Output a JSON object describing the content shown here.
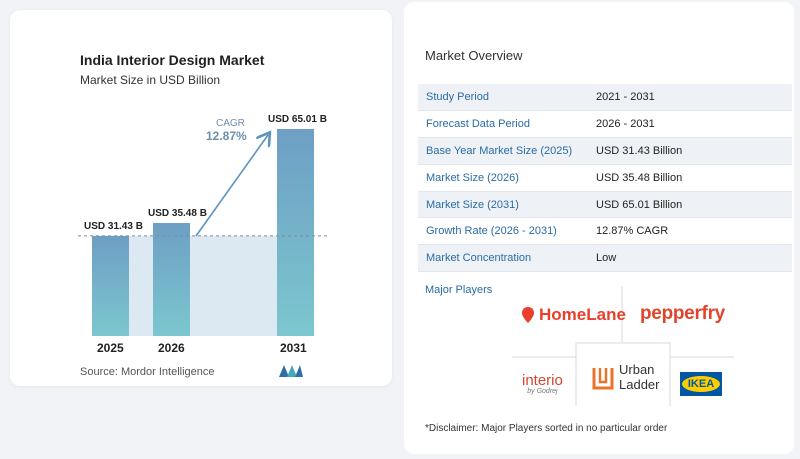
{
  "chart_data": {
    "type": "bar",
    "title": "India Interior Design Market",
    "subtitle": "Market Size in USD Billion",
    "categories": [
      "2025",
      "2026",
      "2031"
    ],
    "values": [
      31.43,
      35.48,
      65.01
    ],
    "value_labels": [
      "USD 31.43 B",
      "USD 35.48 B",
      "USD 65.01 B"
    ],
    "annotation": {
      "label": "CAGR",
      "value": "12.87%"
    },
    "baseline_dashed": true,
    "colors": {
      "bar_top": "#6d9fc4",
      "bar_bottom": "#7cc7cf",
      "band": "#dde9f2",
      "arrow": "#5b93c0"
    }
  },
  "source": "Source:  Mordor Intelligence",
  "overview": {
    "title": "Market Overview",
    "rows": [
      {
        "label": "Study Period",
        "value": "2021 - 2031"
      },
      {
        "label": "Forecast Data Period",
        "value": "2026 - 2031"
      },
      {
        "label": "Base Year Market Size (2025)",
        "value": "USD 31.43 Billion"
      },
      {
        "label": "Market Size (2026)",
        "value": "USD 35.48 Billion"
      },
      {
        "label": "Market Size (2031)",
        "value": "USD 65.01 Billion"
      },
      {
        "label": "Growth Rate (2026 - 2031)",
        "value": "12.87% CAGR"
      },
      {
        "label": "Market Concentration",
        "value": "Low"
      }
    ]
  },
  "players": {
    "title": "Major Players",
    "homelane": "HomeLane",
    "pepperfry": "pepperfry",
    "interio": "interio",
    "interio_sub": "by Godrej",
    "urban_ladder_1": "Urban",
    "urban_ladder_2": "Ladder",
    "ikea": "IKEA"
  },
  "disclaimer": "*Disclaimer: Major Players sorted in no particular order"
}
